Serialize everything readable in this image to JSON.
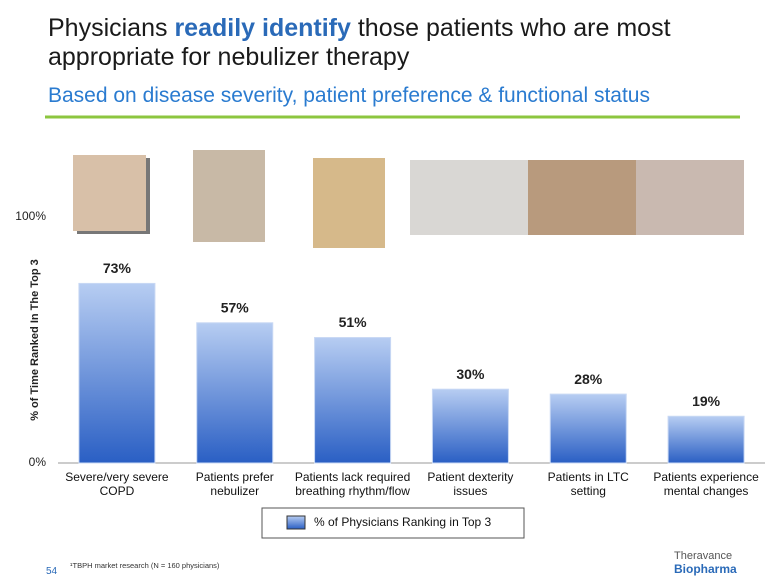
{
  "title_parts": [
    "Physicians ",
    "readily identify",
    " those patients who are most appropriate for nebulizer therapy"
  ],
  "subtitle": "Based on disease severity, patient preference & functional status",
  "chart_data": {
    "type": "bar",
    "y_label": "% of Time Ranked In The Top 3",
    "categories": [
      "Severe/very severe COPD",
      "Patients prefer nebulizer",
      "Patients lack required breathing rhythm/flow",
      "Patient dexterity issues",
      "Patients in LTC setting",
      "Patients experience mental changes"
    ],
    "series": [
      {
        "name": "% of Physicians Ranking in Top 3",
        "color": "#3a72d4",
        "values": [
          73,
          57,
          51,
          30,
          28,
          19
        ],
        "value_labels": [
          "73%",
          "57%",
          "51%",
          "30%",
          "28%",
          "19%"
        ]
      }
    ],
    "ylim": [
      0,
      100
    ],
    "yticks": [
      {
        "value": 0,
        "label": "0%"
      },
      {
        "value": 100,
        "label": "100%"
      }
    ],
    "legend": "bottom"
  },
  "footnote": "¹TBPH market research (N = 160 physicians)",
  "page_number": "54",
  "logo": [
    "Theravance",
    "Biopharma"
  ]
}
